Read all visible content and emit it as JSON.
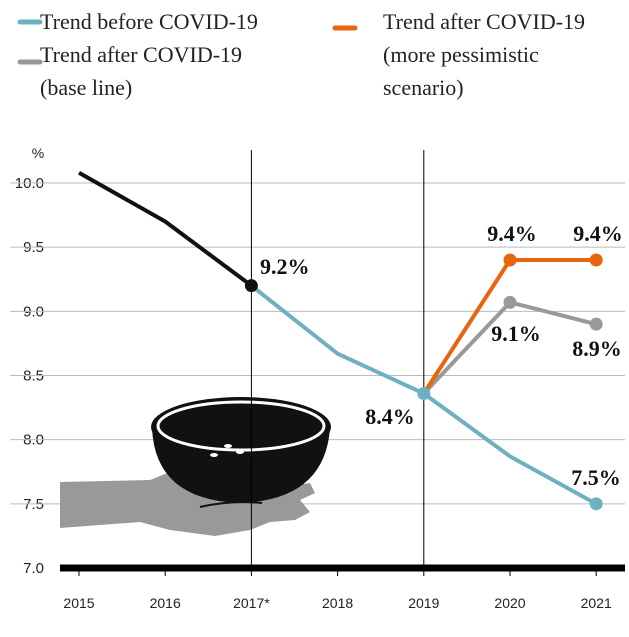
{
  "chart_data": {
    "type": "line",
    "ylabel": "%",
    "categories": [
      "2015",
      "2016",
      "2017*",
      "2018",
      "2019",
      "2020",
      "2021"
    ],
    "series": [
      {
        "color": "#111111",
        "values": [
          10.08,
          9.7,
          9.2,
          null,
          null,
          null,
          null
        ],
        "value_labels": [
          null,
          null,
          "9.2%",
          null,
          null,
          null,
          null
        ]
      },
      {
        "name": "Trend before COVID-19",
        "color": "#6fb0c0",
        "values": [
          null,
          null,
          9.2,
          8.67,
          8.36,
          7.87,
          7.5
        ],
        "value_labels": [
          null,
          null,
          null,
          null,
          "8.4%",
          null,
          "7.5%"
        ]
      },
      {
        "name": "Trend after COVID-19\n(base line)",
        "color": "#999999",
        "values": [
          null,
          null,
          null,
          null,
          8.36,
          9.07,
          8.9
        ],
        "value_labels": [
          null,
          null,
          null,
          null,
          null,
          "9.1%",
          "8.9%"
        ]
      },
      {
        "name": "Trend after COVID-19\n(more pessimistic\nscenario)",
        "color": "#e8650f",
        "values": [
          null,
          null,
          null,
          null,
          8.36,
          9.4,
          9.4
        ],
        "value_labels": [
          null,
          null,
          null,
          null,
          null,
          "9.4%",
          "9.4%"
        ]
      }
    ],
    "ylim": [
      7.0,
      10.0
    ],
    "yticks": [
      {
        "value": 7.0,
        "label": "7.0"
      },
      {
        "value": 7.5,
        "label": "7.5"
      },
      {
        "value": 8.0,
        "label": "8.0"
      },
      {
        "value": 8.5,
        "label": "8.5"
      },
      {
        "value": 9.0,
        "label": "9.0"
      },
      {
        "value": 9.5,
        "label": "9.5"
      },
      {
        "value": 10.0,
        "label": "10.0"
      }
    ],
    "grid": true
  }
}
